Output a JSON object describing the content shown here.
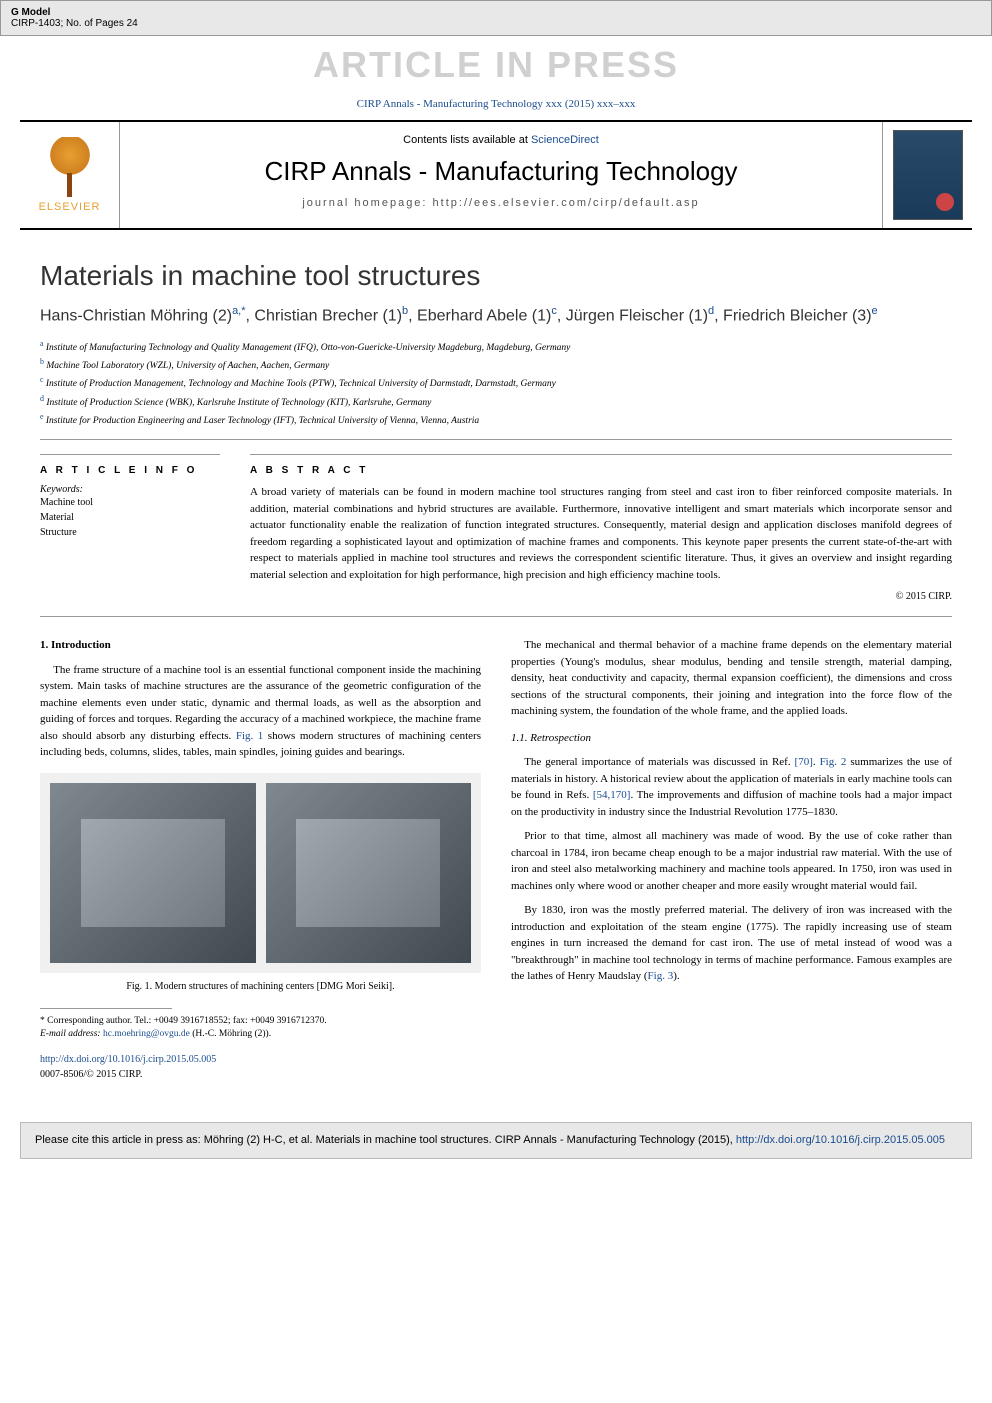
{
  "topbar": {
    "model_label": "G Model",
    "model_id": "CIRP-1403; No. of Pages 24"
  },
  "press_banner": "ARTICLE IN PRESS",
  "citation_line": "CIRP Annals - Manufacturing Technology xxx (2015) xxx–xxx",
  "header": {
    "publisher": "ELSEVIER",
    "contents_prefix": "Contents lists available at ",
    "contents_link": "ScienceDirect",
    "journal_name": "CIRP Annals - Manufacturing Technology",
    "homepage_label": "journal homepage: http://ees.elsevier.com/cirp/default.asp"
  },
  "article": {
    "title": "Materials in machine tool structures",
    "authors_html": "Hans-Christian Möhring (2)<sup>a,*</sup>, Christian Brecher (1)<sup>b</sup>, Eberhard Abele (1)<sup>c</sup>, Jürgen Fleischer (1)<sup>d</sup>, Friedrich Bleicher (3)<sup>e</sup>",
    "affiliations": [
      {
        "sup": "a",
        "text": "Institute of Manufacturing Technology and Quality Management (IFQ), Otto-von-Guericke-University Magdeburg, Magdeburg, Germany"
      },
      {
        "sup": "b",
        "text": "Machine Tool Laboratory (WZL), University of Aachen, Aachen, Germany"
      },
      {
        "sup": "c",
        "text": "Institute of Production Management, Technology and Machine Tools (PTW), Technical University of Darmstadt, Darmstadt, Germany"
      },
      {
        "sup": "d",
        "text": "Institute of Production Science (WBK), Karlsruhe Institute of Technology (KIT), Karlsruhe, Germany"
      },
      {
        "sup": "e",
        "text": "Institute for Production Engineering and Laser Technology (IFT), Technical University of Vienna, Vienna, Austria"
      }
    ],
    "info_heading": "A R T I C L E   I N F O",
    "abstract_heading": "A B S T R A C T",
    "keywords_label": "Keywords:",
    "keywords": [
      "Machine tool",
      "Material",
      "Structure"
    ],
    "abstract": "A broad variety of materials can be found in modern machine tool structures ranging from steel and cast iron to fiber reinforced composite materials. In addition, material combinations and hybrid structures are available. Furthermore, innovative intelligent and smart materials which incorporate sensor and actuator functionality enable the realization of function integrated structures. Consequently, material design and application discloses manifold degrees of freedom regarding a sophisticated layout and optimization of machine frames and components. This keynote paper presents the current state-of-the-art with respect to materials applied in machine tool structures and reviews the correspondent scientific literature. Thus, it gives an overview and insight regarding material selection and exploitation for high performance, high precision and high efficiency machine tools.",
    "copyright": "© 2015 CIRP."
  },
  "body": {
    "sec1_heading": "1. Introduction",
    "sec1_p1": "The frame structure of a machine tool is an essential functional component inside the machining system. Main tasks of machine structures are the assurance of the geometric configuration of the machine elements even under static, dynamic and thermal loads, as well as the absorption and guiding of forces and torques. Regarding the accuracy of a machined workpiece, the machine frame also should absorb any disturbing effects. ",
    "sec1_fig1_ref": "Fig. 1",
    "sec1_p1_cont": " shows modern structures of machining centers including beds, columns, slides, tables, main spindles, joining guides and bearings.",
    "fig1_caption": "Fig. 1. Modern structures of machining centers [DMG Mori Seiki].",
    "col2_p1": "The mechanical and thermal behavior of a machine frame depends on the elementary material properties (Young's modulus, shear modulus, bending and tensile strength, material damping, density, heat conductivity and capacity, thermal expansion coefficient), the dimensions and cross sections of the structural components, their joining and integration into the force flow of the machining system, the foundation of the whole frame, and the applied loads.",
    "sec11_heading": "1.1. Retrospection",
    "sec11_p1_a": "The general importance of materials was discussed in Ref. ",
    "sec11_ref70": "[70]",
    "sec11_p1_b": ". ",
    "sec11_fig2_ref": "Fig. 2",
    "sec11_p1_c": " summarizes the use of materials in history. A historical review about the application of materials in early machine tools can be found in Refs. ",
    "sec11_ref54": "[54,170]",
    "sec11_p1_d": ". The improvements and diffusion of machine tools had a major impact on the productivity in industry since the Industrial Revolution 1775–1830.",
    "sec11_p2": "Prior to that time, almost all machinery was made of wood. By the use of coke rather than charcoal in 1784, iron became cheap enough to be a major industrial raw material. With the use of iron and steel also metalworking machinery and machine tools appeared. In 1750, iron was used in machines only where wood or another cheaper and more easily wrought material would fail.",
    "sec11_p3_a": "By 1830, iron was the mostly preferred material. The delivery of iron was increased with the introduction and exploitation of the steam engine (1775). The rapidly increasing use of steam engines in turn increased the demand for cast iron. The use of metal instead of wood was a \"breakthrough\" in machine tool technology in terms of machine performance. Famous examples are the lathes of Henry Maudslay (",
    "sec11_fig3_ref": "Fig. 3",
    "sec11_p3_b": ")."
  },
  "footnote": {
    "corresponding": "* Corresponding author. Tel.: +0049 3916718552; fax: +0049 3916712370.",
    "email_label": "E-mail address: ",
    "email": "hc.moehring@ovgu.de",
    "email_suffix": " (H.-C. Möhring (2))."
  },
  "doi": {
    "url": "http://dx.doi.org/10.1016/j.cirp.2015.05.005",
    "issn_line": "0007-8506/© 2015 CIRP."
  },
  "cite_footer": {
    "text": "Please cite this article in press as: Möhring (2) H-C, et al. Materials in machine tool structures. CIRP Annals - Manufacturing Technology (2015), ",
    "link": "http://dx.doi.org/10.1016/j.cirp.2015.05.005"
  },
  "colors": {
    "link": "#1a4d8f",
    "banner_gray": "#d0d0d0",
    "border": "#999999",
    "box_bg": "#e8e8e8"
  }
}
